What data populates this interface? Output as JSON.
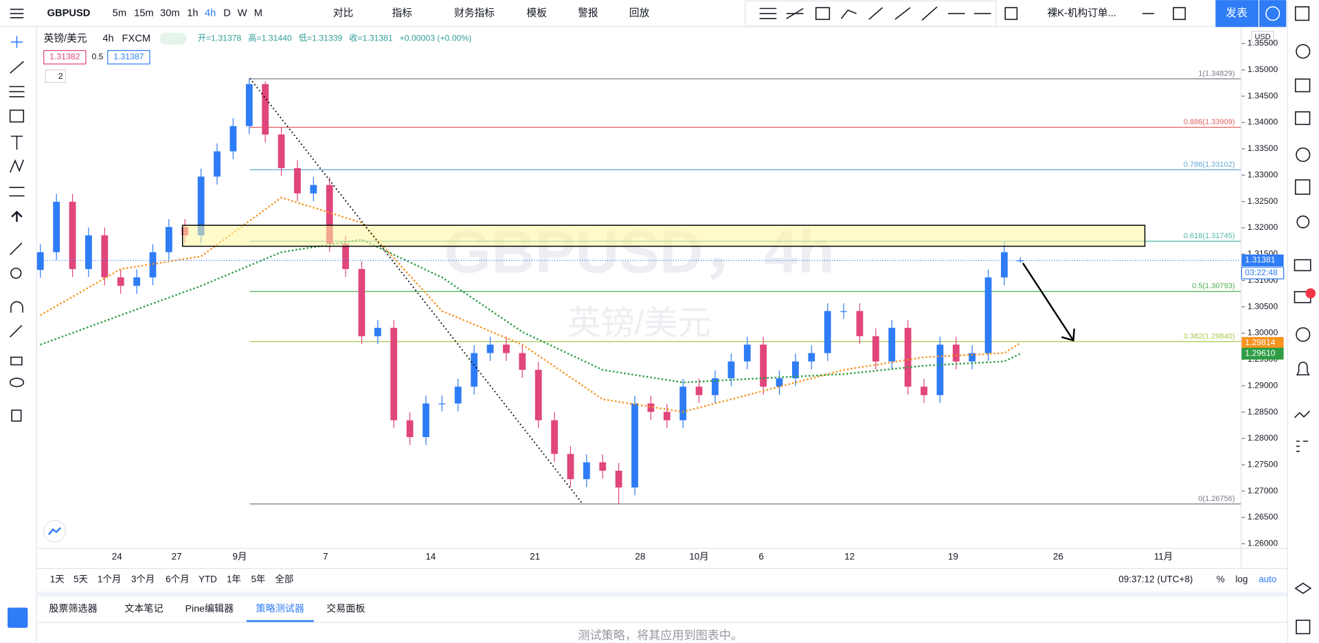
{
  "toolbar": {
    "symbol": "GBPUSD",
    "intervals": [
      "5m",
      "15m",
      "30m",
      "1h",
      "4h",
      "D",
      "W",
      "M"
    ],
    "buttons": [
      "对比",
      "指标",
      "财务指标",
      "模板",
      "警报",
      "回放"
    ],
    "template": "裸K-机构订单...",
    "publish": "发表"
  },
  "legend": {
    "name": "英镑/美元",
    "interval": "4h",
    "exchange": "FXCM",
    "ohlc": [
      "开=1.31378",
      "高=1.31440",
      "低=1.31339",
      "收=1.31381",
      "+0.00003 (+0.00%)"
    ],
    "bid": "1.31382",
    "spread": "0.5",
    "ask": "1.31387",
    "collapse": "2"
  },
  "watermark": {
    "symbol": "GBPUSD，4h",
    "name": "英镑/美元"
  },
  "chart_data": {
    "type": "candlestick",
    "currency": "USD",
    "up_color": "#2e7cf6",
    "down_color": "#e0457b",
    "ylim": [
      1.2592,
      1.35814
    ],
    "yticks": [
      {
        "value": 1.26,
        "label": "1.26000"
      },
      {
        "value": 1.265,
        "label": "1.26500"
      },
      {
        "value": 1.27,
        "label": "1.27000"
      },
      {
        "value": 1.275,
        "label": "1.27500"
      },
      {
        "value": 1.28,
        "label": "1.28000"
      },
      {
        "value": 1.285,
        "label": "1.28500"
      },
      {
        "value": 1.29,
        "label": "1.29000"
      },
      {
        "value": 1.295,
        "label": "1.29500"
      },
      {
        "value": 1.3,
        "label": "1.30000"
      },
      {
        "value": 1.305,
        "label": "1.30500"
      },
      {
        "value": 1.31,
        "label": "1.31000"
      },
      {
        "value": 1.315,
        "label": "1.31500"
      },
      {
        "value": 1.32,
        "label": "1.32000"
      },
      {
        "value": 1.325,
        "label": "1.32500"
      },
      {
        "value": 1.33,
        "label": "1.33000"
      },
      {
        "value": 1.335,
        "label": "1.33500"
      },
      {
        "value": 1.34,
        "label": "1.34000"
      },
      {
        "value": 1.345,
        "label": "1.34500"
      },
      {
        "value": 1.35,
        "label": "1.35000"
      },
      {
        "value": 1.355,
        "label": "1.35500"
      }
    ],
    "open": [
      1.312,
      1.31537,
      1.32494,
      1.31217,
      1.31856,
      1.31058,
      1.30898,
      1.31058,
      1.31537,
      1.32015,
      1.31856,
      1.32973,
      1.33452,
      1.33931,
      1.34729,
      1.33771,
      1.33133,
      1.32654,
      1.32813,
      1.31696,
      1.31217,
      1.29941,
      1.301,
      1.28345,
      1.28025,
      1.28664,
      1.28664,
      1.28983,
      1.29621,
      1.29781,
      1.29621,
      1.29302,
      1.28345,
      1.27706,
      1.27227,
      1.27547,
      1.27387,
      1.27068,
      1.28664,
      1.28504,
      1.28345,
      1.28983,
      1.28823,
      1.29143,
      1.29462,
      1.29781,
      1.28983,
      1.29143,
      1.29462,
      1.29621,
      1.30419,
      1.30419,
      1.29941,
      1.29462,
      1.301,
      1.28983,
      1.28823,
      1.29781,
      1.29462,
      1.29621,
      1.31058,
      1.31378
    ],
    "high": [
      1.31687,
      1.32644,
      1.32644,
      1.32006,
      1.32006,
      1.31208,
      1.31208,
      1.31687,
      1.32165,
      1.32165,
      1.33123,
      1.33602,
      1.34081,
      1.34829,
      1.34779,
      1.33921,
      1.33283,
      1.32963,
      1.32963,
      1.31846,
      1.31367,
      1.3025,
      1.3025,
      1.28495,
      1.28814,
      1.28814,
      1.29133,
      1.29771,
      1.29931,
      1.29931,
      1.29771,
      1.29452,
      1.28495,
      1.27856,
      1.27697,
      1.27697,
      1.27537,
      1.28814,
      1.28814,
      1.28654,
      1.29133,
      1.29133,
      1.29293,
      1.29612,
      1.29931,
      1.29931,
      1.29293,
      1.29612,
      1.29771,
      1.30569,
      1.30569,
      1.30569,
      1.30091,
      1.3025,
      1.3025,
      1.29133,
      1.29931,
      1.29931,
      1.29771,
      1.31208,
      1.31745,
      1.3144
    ],
    "low": [
      1.3105,
      1.31387,
      1.31067,
      1.31067,
      1.30908,
      1.30748,
      1.30748,
      1.30908,
      1.31387,
      1.31706,
      1.31706,
      1.32823,
      1.33302,
      1.33781,
      1.33621,
      1.32983,
      1.32504,
      1.32504,
      1.31546,
      1.31067,
      1.29791,
      1.29791,
      1.28195,
      1.27875,
      1.27875,
      1.28514,
      1.28514,
      1.28833,
      1.29471,
      1.29471,
      1.29152,
      1.28195,
      1.27556,
      1.27077,
      1.27077,
      1.27237,
      1.26756,
      1.26918,
      1.28354,
      1.28195,
      1.28195,
      1.28673,
      1.28673,
      1.28993,
      1.29312,
      1.28833,
      1.28833,
      1.28993,
      1.29312,
      1.29471,
      1.30269,
      1.29791,
      1.29312,
      1.29312,
      1.28833,
      1.28673,
      1.28673,
      1.29312,
      1.29312,
      1.29471,
      1.30908,
      1.31339
    ],
    "close": [
      1.31537,
      1.32494,
      1.31217,
      1.31856,
      1.31058,
      1.30898,
      1.31058,
      1.31537,
      1.32015,
      1.31856,
      1.32973,
      1.33452,
      1.33931,
      1.34729,
      1.33771,
      1.33133,
      1.32654,
      1.32813,
      1.31696,
      1.31217,
      1.29941,
      1.301,
      1.28345,
      1.28025,
      1.28664,
      1.28664,
      1.28983,
      1.29621,
      1.29781,
      1.29621,
      1.29302,
      1.28345,
      1.27706,
      1.27227,
      1.27547,
      1.27387,
      1.27068,
      1.28664,
      1.28504,
      1.28345,
      1.28983,
      1.28823,
      1.29143,
      1.29462,
      1.29781,
      1.28983,
      1.29143,
      1.29462,
      1.29621,
      1.30419,
      1.30419,
      1.29941,
      1.29462,
      1.301,
      1.28983,
      1.28823,
      1.29781,
      1.29462,
      1.29621,
      1.31058,
      1.31537,
      1.31381
    ],
    "moving_averages": [
      {
        "color": "#f7931e",
        "x": [
          0,
          5,
          10,
          15,
          20,
          25,
          30,
          35,
          40,
          45,
          50,
          55,
          60,
          61
        ],
        "values": [
          1.3034,
          1.31217,
          1.31457,
          1.32574,
          1.32095,
          1.30419,
          1.29781,
          1.28744,
          1.28504,
          1.28903,
          1.29302,
          1.29542,
          1.29621,
          1.29814
        ]
      },
      {
        "color": "#2e9d45",
        "x": [
          0,
          5,
          10,
          15,
          20,
          25,
          30,
          35,
          40,
          45,
          50,
          55,
          60,
          61
        ],
        "values": [
          1.29781,
          1.3034,
          1.30898,
          1.31537,
          1.31776,
          1.31058,
          1.30021,
          1.29302,
          1.29063,
          1.29143,
          1.29222,
          1.29382,
          1.29462,
          1.2961
        ]
      }
    ],
    "levels": [
      {
        "value": 1.34829,
        "label": "1(1.34829)",
        "color": "#787b86"
      },
      {
        "value": 1.33909,
        "label": "0.886(1.33909)",
        "color": "#e0605f"
      },
      {
        "value": 1.33102,
        "label": "0.786(1.33102)",
        "color": "#5fa8d3"
      },
      {
        "value": 1.31745,
        "label": "0.618(1.31745)",
        "color": "#4cb8a4"
      },
      {
        "value": 1.30793,
        "label": "0.5(1.30793)",
        "color": "#4caf50"
      },
      {
        "value": 1.2984,
        "label": "0.382(1.29840)",
        "color": "#a4c84a"
      },
      {
        "value": 1.26756,
        "label": "0(1.26756)",
        "color": "#787b86"
      }
    ],
    "price_tags": [
      {
        "value": 1.31381,
        "label": "1.31381",
        "color": "#2e7cf6"
      },
      {
        "value": 1.29814,
        "label": "1.29814",
        "color": "#f7931e"
      },
      {
        "value": 1.2961,
        "label": "1.29610",
        "color": "#2e9d45"
      }
    ],
    "countdown": "03:22:48",
    "xlabels": [
      "24",
      "27",
      "9月",
      "7",
      "14",
      "21",
      "28",
      "10月",
      "6",
      "12",
      "19",
      "26",
      "11月"
    ]
  },
  "bottom_bar": {
    "ranges": [
      "1天",
      "5天",
      "1个月",
      "3个月",
      "6个月",
      "YTD",
      "1年",
      "5年",
      "全部"
    ],
    "clock": "09:37:12 (UTC+8)",
    "options": [
      "%",
      "log",
      "auto"
    ]
  },
  "panel": {
    "tabs": [
      "股票筛选器",
      "文本笔记",
      "Pine编辑器",
      "策略测试器",
      "交易面板"
    ],
    "active": 3,
    "message": "测试策略，将其应用到图表中。"
  }
}
